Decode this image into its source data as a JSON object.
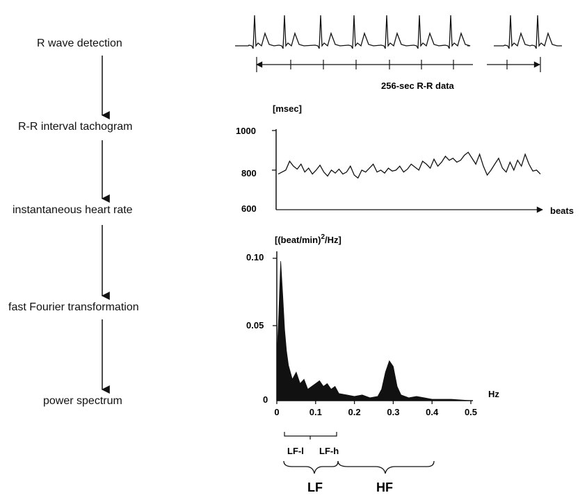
{
  "steps": [
    "R wave detection",
    "R-R interval tachogram",
    "instantaneous heart rate",
    "fast Fourier transformation",
    "power spectrum"
  ],
  "ecg": {
    "caption": "256-sec R-R data"
  },
  "tachogram": {
    "unit": "[msec]",
    "yticks": [
      "1000",
      "800",
      "600"
    ],
    "xlabel": "beats",
    "values": [
      780,
      790,
      800,
      845,
      820,
      805,
      830,
      790,
      810,
      780,
      800,
      825,
      790,
      770,
      800,
      785,
      805,
      780,
      790,
      820,
      775,
      760,
      800,
      790,
      810,
      830,
      790,
      800,
      785,
      810,
      795,
      800,
      820,
      790,
      805,
      830,
      815,
      800,
      845,
      830,
      810,
      855,
      820,
      840,
      870,
      850,
      860,
      840,
      850,
      875,
      890,
      860,
      830,
      880,
      820,
      775,
      800,
      830,
      860,
      810,
      790,
      840,
      800,
      850,
      820,
      880,
      830,
      795,
      800,
      780
    ]
  },
  "spectrum": {
    "unit": "[(beat/min)",
    "unit_sup": "2",
    "unit_tail": "/Hz]",
    "yticks": [
      "0.10",
      "0.05",
      "0"
    ],
    "xticks": [
      "0",
      "0.1",
      "0.2",
      "0.3",
      "0.4",
      "0.5"
    ],
    "xunit": "Hz",
    "bands": {
      "lf_l": "LF-l",
      "lf_h": "LF-h",
      "lf": "LF",
      "hf": "HF"
    }
  },
  "chart_data": [
    {
      "type": "line",
      "title": "",
      "ylabel": "[msec]",
      "xlabel": "beats",
      "ylim": [
        600,
        1000
      ],
      "series": [
        {
          "values": [
            780,
            790,
            800,
            845,
            820,
            805,
            830,
            790,
            810,
            780,
            800,
            825,
            790,
            770,
            800,
            785,
            805,
            780,
            790,
            820,
            775,
            760,
            800,
            790,
            810,
            830,
            790,
            800,
            785,
            810,
            795,
            800,
            820,
            790,
            805,
            830,
            815,
            800,
            845,
            830,
            810,
            855,
            820,
            840,
            870,
            850,
            860,
            840,
            850,
            875,
            890,
            860,
            830,
            880,
            820,
            775,
            800,
            830,
            860,
            810,
            790,
            840,
            800,
            850,
            820,
            880,
            830,
            795,
            800,
            780
          ]
        }
      ]
    },
    {
      "type": "area",
      "title": "",
      "ylabel": "[(beat/min)2/Hz]",
      "xlabel": "Hz",
      "xlim": [
        0,
        0.5
      ],
      "ylim": [
        0,
        0.1
      ],
      "x": [
        0.0,
        0.005,
        0.01,
        0.015,
        0.02,
        0.025,
        0.03,
        0.04,
        0.05,
        0.06,
        0.07,
        0.08,
        0.09,
        0.1,
        0.11,
        0.12,
        0.13,
        0.14,
        0.15,
        0.16,
        0.18,
        0.2,
        0.22,
        0.24,
        0.26,
        0.27,
        0.28,
        0.29,
        0.3,
        0.31,
        0.32,
        0.34,
        0.36,
        0.38,
        0.4,
        0.42,
        0.45,
        0.5
      ],
      "series": [
        {
          "values": [
            0.03,
            0.06,
            0.098,
            0.075,
            0.05,
            0.035,
            0.025,
            0.015,
            0.02,
            0.012,
            0.015,
            0.008,
            0.01,
            0.012,
            0.014,
            0.01,
            0.012,
            0.008,
            0.01,
            0.005,
            0.004,
            0.003,
            0.004,
            0.002,
            0.003,
            0.008,
            0.02,
            0.028,
            0.024,
            0.01,
            0.004,
            0.002,
            0.003,
            0.002,
            0.001,
            0.001,
            0.001,
            0.0
          ]
        }
      ]
    }
  ]
}
